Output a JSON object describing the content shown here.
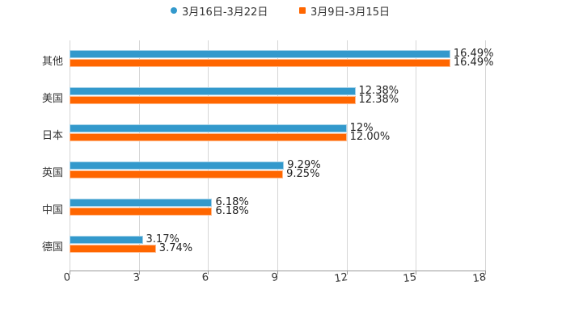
{
  "chart_data": {
    "type": "bar",
    "orientation": "horizontal",
    "title": "",
    "xlabel": "",
    "ylabel": "",
    "xlim": [
      0,
      18
    ],
    "x_ticks": [
      0,
      3,
      6,
      9,
      12,
      15,
      18
    ],
    "grid": true,
    "legend_position": "top",
    "categories": [
      "其他",
      "美国",
      "日本",
      "英国",
      "中国",
      "德国"
    ],
    "series": [
      {
        "name": "3月16日-3月22日",
        "color": "#3399cc",
        "values": [
          16.49,
          12.38,
          12,
          9.29,
          6.18,
          3.17
        ],
        "labels": [
          "16.49%",
          "12.38%",
          "12%",
          "9.29%",
          "6.18%",
          "3.17%"
        ]
      },
      {
        "name": "3月9日-3月15日",
        "color": "#ff6600",
        "values": [
          16.49,
          12.38,
          12.0,
          9.25,
          6.18,
          3.74
        ],
        "labels": [
          "16.49%",
          "12.38%",
          "12.00%",
          "9.25%",
          "6.18%",
          "3.74%"
        ]
      }
    ]
  },
  "legend": {
    "items": [
      {
        "label": "3月16日-3月22日",
        "color": "#3399cc"
      },
      {
        "label": "3月9日-3月15日",
        "color": "#ff6600"
      }
    ]
  }
}
